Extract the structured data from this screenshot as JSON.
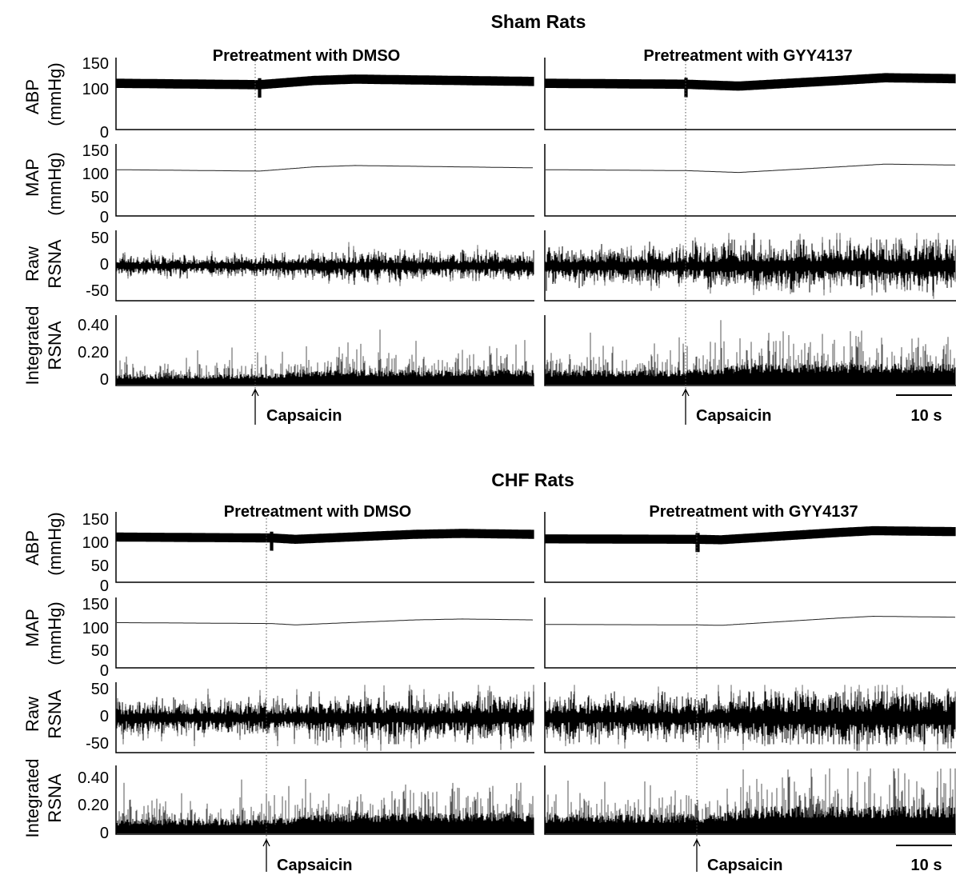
{
  "figure": {
    "groups": [
      {
        "title": "Sham Rats",
        "conditions": [
          {
            "title": "Pretreatment with DMSO",
            "stimulus_label": "Capsaicin",
            "stimulus_time_s": 24
          },
          {
            "title": "Pretreatment with GYY4137",
            "stimulus_label": "Capsaicin",
            "stimulus_time_s": 24
          }
        ],
        "scale_bar_label": "10 s"
      },
      {
        "title": "CHF Rats",
        "conditions": [
          {
            "title": "Pretreatment with DMSO",
            "stimulus_label": "Capsaicin",
            "stimulus_time_s": 26
          },
          {
            "title": "Pretreatment with GYY4137",
            "stimulus_label": "Capsaicin",
            "stimulus_time_s": 26
          }
        ],
        "scale_bar_label": "10 s"
      }
    ]
  },
  "chart_data": [
    {
      "type": "line",
      "title": "Sham Rats",
      "x_range_s": [
        0,
        70
      ],
      "stimulus": {
        "label": "Capsaicin",
        "time_s": 24
      },
      "channels": [
        {
          "key": "abp",
          "ylabel": [
            "ABP",
            "(mmHg)"
          ],
          "yticks": [
            "150",
            "100",
            "0"
          ],
          "ylim": [
            0,
            150
          ],
          "tick_values": [
            150,
            100,
            0
          ]
        },
        {
          "key": "map",
          "ylabel": [
            "MAP",
            "(mmHg)"
          ],
          "yticks": [
            "150",
            "100",
            "50",
            "0"
          ],
          "ylim": [
            0,
            150
          ],
          "tick_values": [
            150,
            100,
            50,
            0
          ]
        },
        {
          "key": "raw",
          "ylabel": [
            "Raw",
            "RSNA"
          ],
          "yticks": [
            "50",
            "0",
            "-50"
          ],
          "ylim": [
            -65,
            65
          ],
          "tick_values": [
            50,
            0,
            -50
          ]
        },
        {
          "key": "int",
          "ylabel": [
            "Integrated",
            "RSNA"
          ],
          "yticks": [
            "0.40",
            "0.20",
            "0"
          ],
          "ylim": [
            0,
            0.5
          ],
          "tick_values": [
            0.4,
            0.2,
            0
          ]
        }
      ],
      "series": [
        {
          "condition": "Pretreatment with DMSO",
          "map_mean_mmHg": [
            [
              0,
              98
            ],
            [
              24,
              95
            ],
            [
              33,
              104
            ],
            [
              40,
              107
            ],
            [
              70,
              102
            ]
          ],
          "abp_pulse_half_mmHg": 10,
          "raw_rsna_amp": 18,
          "int_rsna_base": 0.07
        },
        {
          "condition": "Pretreatment with GYY4137",
          "map_mean_mmHg": [
            [
              0,
              98
            ],
            [
              24,
              96
            ],
            [
              33,
              92
            ],
            [
              50,
              104
            ],
            [
              58,
              110
            ],
            [
              70,
              108
            ]
          ],
          "abp_pulse_half_mmHg": 10,
          "raw_rsna_amp": 32,
          "int_rsna_base": 0.1
        }
      ]
    },
    {
      "type": "line",
      "title": "CHF Rats",
      "x_range_s": [
        0,
        70
      ],
      "stimulus": {
        "label": "Capsaicin",
        "time_s": 26
      },
      "channels": [
        {
          "key": "abp",
          "ylabel": [
            "ABP",
            "(mmHg)"
          ],
          "yticks": [
            "150",
            "100",
            "50",
            "0"
          ],
          "ylim": [
            0,
            150
          ],
          "tick_values": [
            150,
            100,
            50,
            0
          ]
        },
        {
          "key": "map",
          "ylabel": [
            "MAP",
            "(mmHg)"
          ],
          "yticks": [
            "150",
            "100",
            "50",
            "0"
          ],
          "ylim": [
            0,
            150
          ],
          "tick_values": [
            150,
            100,
            50,
            0
          ]
        },
        {
          "key": "raw",
          "ylabel": [
            "Raw",
            "RSNA"
          ],
          "yticks": [
            "50",
            "0",
            "-50"
          ],
          "ylim": [
            -65,
            65
          ],
          "tick_values": [
            50,
            0,
            -50
          ]
        },
        {
          "key": "int",
          "ylabel": [
            "Integrated",
            "RSNA"
          ],
          "yticks": [
            "0.40",
            "0.20",
            "0"
          ],
          "ylim": [
            0,
            0.5
          ],
          "tick_values": [
            0.4,
            0.2,
            0
          ]
        }
      ],
      "series": [
        {
          "condition": "Pretreatment with DMSO",
          "map_mean_mmHg": [
            [
              0,
              98
            ],
            [
              26,
              96
            ],
            [
              30,
              93
            ],
            [
              50,
              104
            ],
            [
              58,
              106
            ],
            [
              70,
              104
            ]
          ],
          "abp_pulse_half_mmHg": 10,
          "raw_rsna_amp": 30,
          "int_rsna_base": 0.1
        },
        {
          "condition": "Pretreatment with GYY4137",
          "map_mean_mmHg": [
            [
              0,
              94
            ],
            [
              26,
              93
            ],
            [
              30,
              92
            ],
            [
              50,
              108
            ],
            [
              56,
              112
            ],
            [
              70,
              110
            ]
          ],
          "abp_pulse_half_mmHg": 10,
          "raw_rsna_amp": 40,
          "int_rsna_base": 0.13
        }
      ]
    }
  ]
}
